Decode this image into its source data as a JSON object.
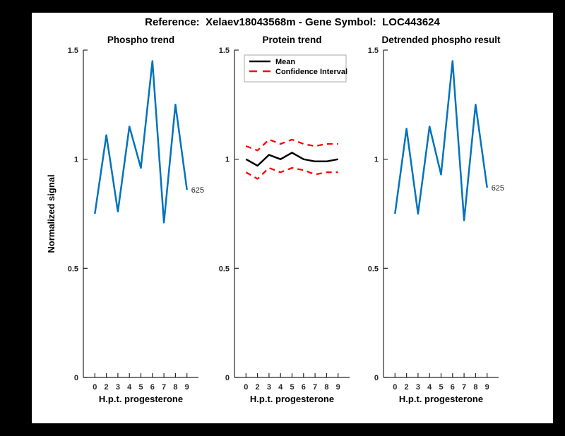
{
  "figure_title": "Reference:  Xelaev18043568m - Gene Symbol:  LOC443624",
  "colors": {
    "matlab_blue": "#0072BD",
    "ci_red": "#FF0000",
    "mean_black": "#000000",
    "axis_gray": "#262626",
    "background": "#000000",
    "canvas": "#FFFFFF"
  },
  "chart_data": [
    {
      "type": "line",
      "title": "Phospho trend",
      "xlabel": "H.p.t. progesterone",
      "ylabel": "Normalized signal",
      "xlim": [
        0,
        10
      ],
      "ylim": [
        0,
        1.5
      ],
      "x": [
        1,
        2,
        3,
        4,
        5,
        6,
        7,
        8,
        9
      ],
      "x_tick_labels": [
        "0",
        "2",
        "3",
        "4",
        "5",
        "6",
        "7",
        "8",
        "9"
      ],
      "y_tick_values": [
        0,
        0.5,
        1,
        1.5
      ],
      "y_tick_labels": [
        "0",
        "0.5",
        "1",
        "1.5"
      ],
      "grid": false,
      "series": [
        {
          "name": "phospho-signal",
          "color": "#0072BD",
          "dash": "",
          "width": 2.5,
          "values": [
            0.75,
            1.11,
            0.76,
            1.15,
            0.96,
            1.45,
            0.71,
            1.25,
            0.86
          ]
        }
      ],
      "end_label": "625",
      "legend": null
    },
    {
      "type": "line",
      "title": "Protein trend",
      "xlabel": "H.p.t. progesterone",
      "ylabel": "",
      "xlim": [
        0,
        10
      ],
      "ylim": [
        0,
        1.5
      ],
      "x": [
        1,
        2,
        3,
        4,
        5,
        6,
        7,
        8,
        9
      ],
      "x_tick_labels": [
        "0",
        "2",
        "3",
        "4",
        "5",
        "6",
        "7",
        "8",
        "9"
      ],
      "y_tick_values": [
        0,
        0.5,
        1,
        1.5
      ],
      "y_tick_labels": [
        "0",
        "0.5",
        "1",
        "1.5"
      ],
      "grid": false,
      "series": [
        {
          "name": "ci-upper",
          "color": "#FF0000",
          "dash": "8 6",
          "width": 2.3,
          "values": [
            1.06,
            1.04,
            1.09,
            1.07,
            1.09,
            1.07,
            1.06,
            1.07,
            1.07
          ]
        },
        {
          "name": "ci-lower",
          "color": "#FF0000",
          "dash": "8 6",
          "width": 2.3,
          "values": [
            0.94,
            0.91,
            0.96,
            0.94,
            0.96,
            0.95,
            0.93,
            0.94,
            0.94
          ]
        },
        {
          "name": "mean",
          "color": "#000000",
          "dash": "",
          "width": 2.5,
          "values": [
            1.0,
            0.97,
            1.02,
            1.0,
            1.03,
            1.0,
            0.99,
            0.99,
            1.0
          ]
        }
      ],
      "end_label": null,
      "legend": {
        "position": "top-left",
        "entries": [
          {
            "label": "Mean",
            "color": "#000000",
            "dash": ""
          },
          {
            "label": "Confidence Interval",
            "color": "#FF0000",
            "dash": "11 8"
          }
        ]
      }
    },
    {
      "type": "line",
      "title": "Detrended phospho result",
      "xlabel": "H.p.t. progesterone",
      "ylabel": "",
      "xlim": [
        0,
        10
      ],
      "ylim": [
        0,
        1.5
      ],
      "x": [
        1,
        2,
        3,
        4,
        5,
        6,
        7,
        8,
        9
      ],
      "x_tick_labels": [
        "0",
        "2",
        "3",
        "4",
        "5",
        "6",
        "7",
        "8",
        "9"
      ],
      "y_tick_values": [
        0,
        0.5,
        1,
        1.5
      ],
      "y_tick_labels": [
        "0",
        "0.5",
        "1",
        "1.5"
      ],
      "grid": false,
      "series": [
        {
          "name": "detrended-phospho-signal",
          "color": "#0072BD",
          "dash": "",
          "width": 2.5,
          "values": [
            0.75,
            1.14,
            0.75,
            1.15,
            0.93,
            1.45,
            0.72,
            1.25,
            0.87
          ]
        }
      ],
      "end_label": "625",
      "legend": null
    }
  ]
}
